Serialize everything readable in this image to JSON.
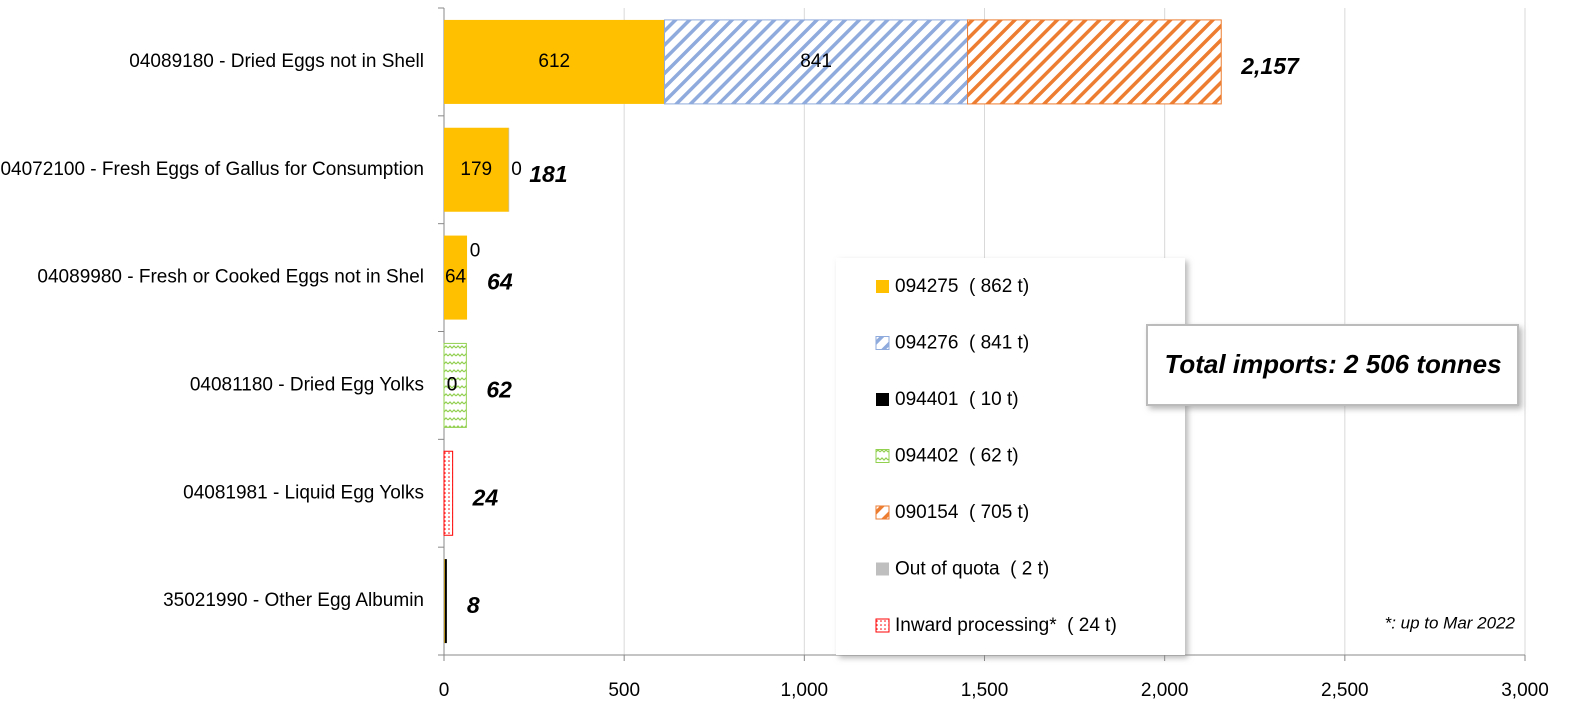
{
  "chart_data": {
    "type": "stacked_bar_horizontal",
    "categories": [
      "04089180 - Dried Eggs not in Shell",
      "04072100 - Fresh Eggs of Gallus for Consumption",
      "04089980 - Fresh or Cooked Eggs not in Shel",
      "04081180 - Dried Egg Yolks",
      "04081981 - Liquid Egg Yolks",
      "35021990 - Other Egg Albumin"
    ],
    "series": [
      {
        "name": "094275  ( 862 t)",
        "color": "#ffc000",
        "pattern": "solid",
        "values": [
          612,
          179,
          64,
          0,
          null,
          2
        ],
        "value_labels": [
          "612",
          "179",
          "64",
          "0",
          null,
          null
        ]
      },
      {
        "name": "094276  ( 841 t)",
        "color": "#8faadc",
        "pattern": "hatch",
        "values": [
          841,
          0,
          null,
          null,
          null,
          null
        ],
        "value_labels": [
          "841",
          "0",
          null,
          null,
          null,
          null
        ]
      },
      {
        "name": "094401  ( 10 t)",
        "color": "#000000",
        "pattern": "solid",
        "values": [
          null,
          null,
          null,
          0,
          null,
          6
        ],
        "value_labels": [
          null,
          null,
          null,
          "0",
          null,
          null
        ]
      },
      {
        "name": "094402  ( 62 t)",
        "color": "#92d050",
        "pattern": "zigzag",
        "values": [
          null,
          null,
          0,
          62,
          null,
          null
        ],
        "value_labels": [
          null,
          null,
          "0",
          null,
          null,
          null
        ]
      },
      {
        "name": "090154  ( 705 t)",
        "color": "#ed7d31",
        "pattern": "hatch",
        "values": [
          704,
          null,
          null,
          null,
          null,
          null
        ]
      },
      {
        "name": "Out of quota  ( 2 t)",
        "color": "#bfbfbf",
        "pattern": "solid",
        "values": [
          null,
          2,
          null,
          null,
          null,
          null
        ]
      },
      {
        "name": "Inward processing*  ( 24 t)",
        "color": "#ff0000",
        "pattern": "dots",
        "values": [
          null,
          null,
          null,
          null,
          24,
          null
        ]
      }
    ],
    "totals": {
      "values": [
        2157,
        181,
        64,
        62,
        24,
        8
      ],
      "value_labels": [
        "2,157",
        "181",
        "64",
        "62",
        "24",
        "8"
      ]
    },
    "xlim": [
      0,
      3000
    ],
    "xticks": [
      0,
      500,
      {
        "value": 1000,
        "label": "1,000"
      },
      {
        "value": 1500,
        "label": "1,500"
      },
      {
        "value": 2000,
        "label": "2,000"
      },
      {
        "value": 2500,
        "label": "2,500"
      },
      {
        "value": 3000,
        "label": "3,000"
      }
    ],
    "grid": true,
    "annotations": [
      "Total imports: 2 506 tonnes",
      "*: up to Mar 2022"
    ]
  }
}
